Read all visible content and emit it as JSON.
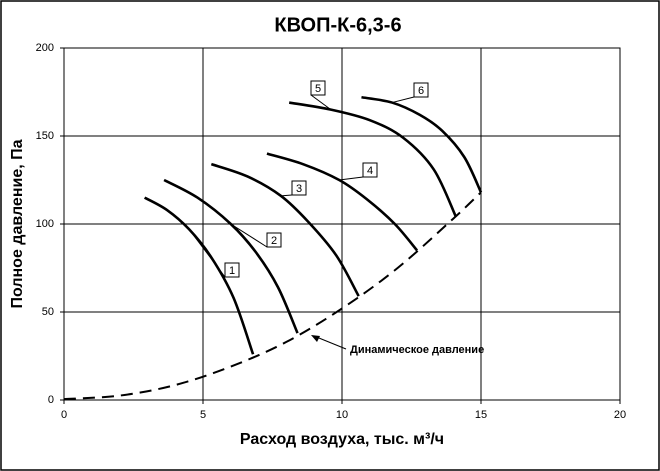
{
  "chart_data": {
    "type": "line",
    "title": "КВОП-К-6,3-6",
    "x_label": "Расход воздуха,  тыс. м³/ч",
    "y_label": "Полное давление, Па",
    "xlim": [
      0,
      20
    ],
    "xticks": [
      0,
      5,
      10,
      15,
      20
    ],
    "ylim": [
      0,
      200
    ],
    "yticks": [
      0,
      50,
      100,
      150,
      200
    ],
    "grid": true,
    "series": [
      {
        "name": "1",
        "color": "#000000",
        "x": [
          2.9,
          3.7,
          4.5,
          5.3,
          6.1,
          6.8
        ],
        "values": [
          115,
          108,
          97,
          81,
          58,
          26
        ]
      },
      {
        "name": "2",
        "color": "#000000",
        "x": [
          3.6,
          4.8,
          6.0,
          6.9,
          7.7,
          8.4
        ],
        "values": [
          125,
          115,
          100,
          84,
          64,
          38
        ]
      },
      {
        "name": "3",
        "color": "#000000",
        "x": [
          5.3,
          6.6,
          7.8,
          8.8,
          9.8,
          10.6
        ],
        "values": [
          134,
          127,
          116,
          101,
          82,
          59
        ]
      },
      {
        "name": "4",
        "color": "#000000",
        "x": [
          7.3,
          8.6,
          9.9,
          10.9,
          11.9,
          12.7
        ],
        "values": [
          140,
          134,
          125,
          114,
          100,
          85
        ]
      },
      {
        "name": "5",
        "color": "#000000",
        "x": [
          8.1,
          9.6,
          11.0,
          12.2,
          13.3,
          14.1
        ],
        "values": [
          169,
          165,
          159,
          149,
          131,
          104
        ]
      },
      {
        "name": "6",
        "color": "#000000",
        "x": [
          10.7,
          11.8,
          12.8,
          13.6,
          14.4,
          15.0
        ],
        "values": [
          172,
          169,
          162,
          153,
          138,
          118
        ]
      },
      {
        "name": "Динамическое давление",
        "color": "#000000",
        "style": "dashed",
        "x": [
          0,
          2,
          4,
          6,
          8,
          10,
          12,
          14,
          15
        ],
        "values": [
          0.5,
          2.5,
          8.5,
          19,
          33,
          52,
          75,
          103,
          118
        ]
      }
    ]
  }
}
